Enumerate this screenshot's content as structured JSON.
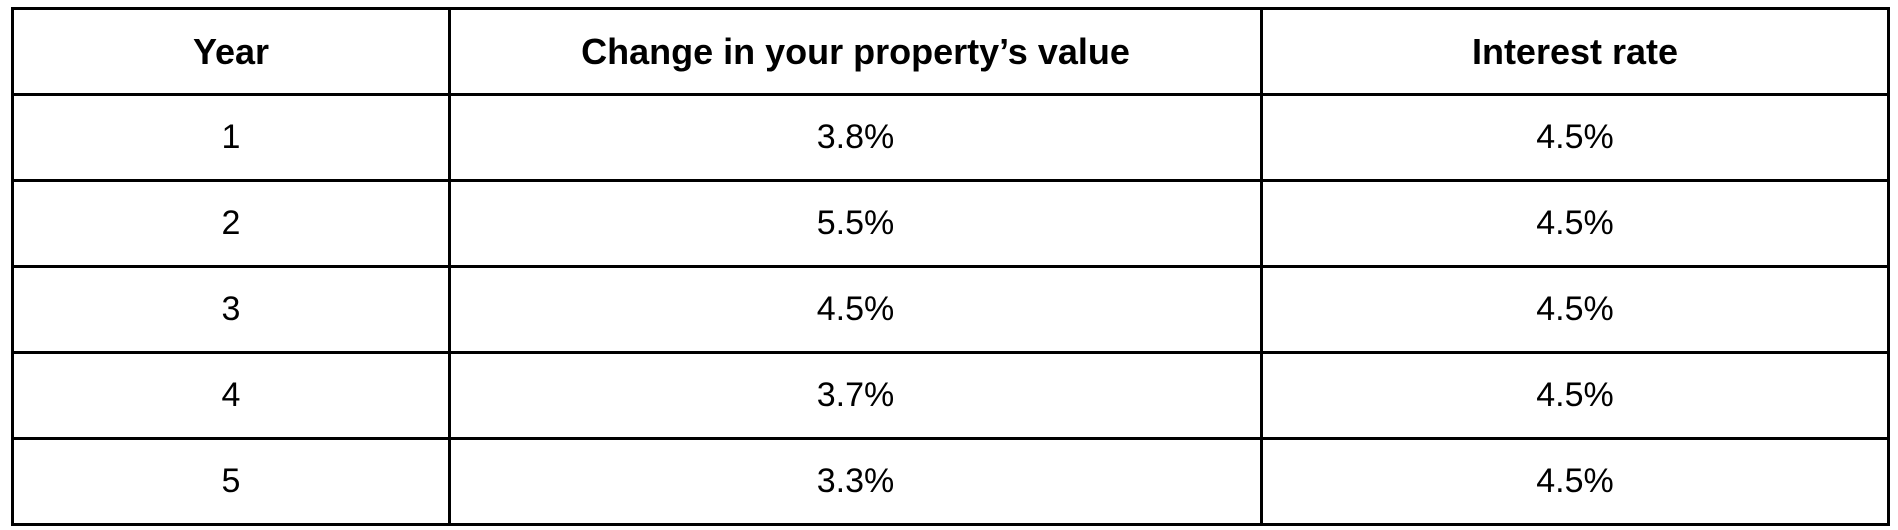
{
  "table": {
    "headers": [
      "Year",
      "Change in your property’s value",
      "Interest rate"
    ],
    "rows": [
      [
        "1",
        "3.8%",
        "4.5%"
      ],
      [
        "2",
        "5.5%",
        "4.5%"
      ],
      [
        "3",
        "4.5%",
        "4.5%"
      ],
      [
        "4",
        "3.7%",
        "4.5%"
      ],
      [
        "5",
        "3.3%",
        "4.5%"
      ]
    ]
  }
}
